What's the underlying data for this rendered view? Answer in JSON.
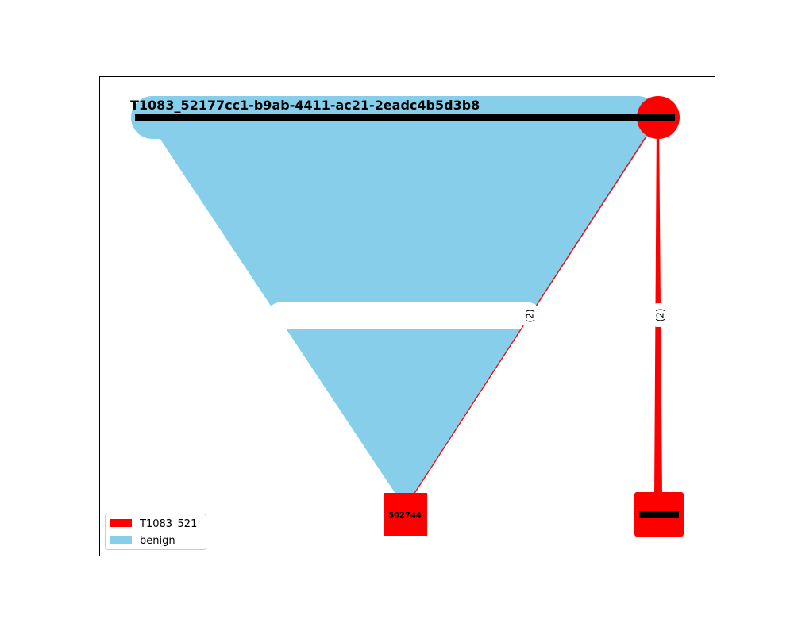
{
  "graph": {
    "nodes": [
      {
        "id": "top-left",
        "label": "T1083_52177cc1-b9ab-4411-ac21-2eadc4b5d3b8",
        "group": "benign",
        "shape": "rounded-rect"
      },
      {
        "id": "top-right",
        "label": "",
        "group": "T1083_521",
        "shape": "circle"
      },
      {
        "id": "bottom-mid",
        "label": "502744",
        "group": "T1083_521",
        "shape": "square"
      },
      {
        "id": "bottom-right",
        "label": "",
        "group": "T1083_521",
        "shape": "square"
      }
    ],
    "edges": [
      {
        "from": "top-left",
        "to": "bottom-mid",
        "group": "benign",
        "label": ""
      },
      {
        "from": "top-right",
        "to": "bottom-mid",
        "group": "T1083_521",
        "label": "(2)"
      },
      {
        "from": "top-right",
        "to": "bottom-right",
        "group": "T1083_521",
        "label": "(2)"
      }
    ]
  },
  "legend": {
    "placement": "lower-left",
    "items": [
      {
        "label": "T1083_521",
        "color": "#ff0000"
      },
      {
        "label": "benign",
        "color": "#87ceeb"
      }
    ]
  },
  "colors": {
    "malicious": "#ff0000",
    "benign": "#87ceeb",
    "bar": "#000000",
    "frame": "#000000"
  }
}
